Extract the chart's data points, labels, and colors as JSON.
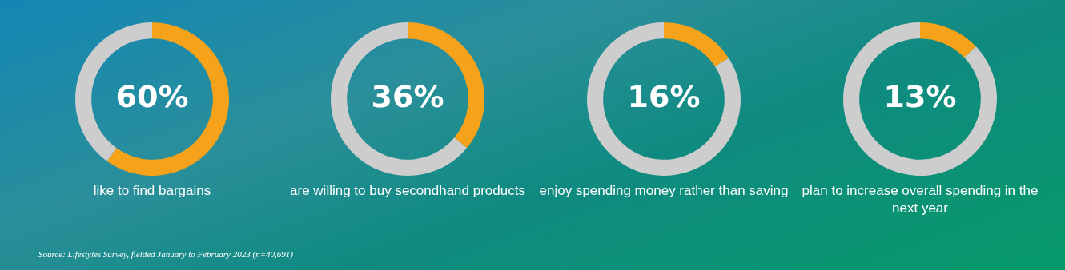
{
  "chart_data": [
    {
      "type": "donut",
      "title": "like to find bargains",
      "categories": [
        null,
        null
      ],
      "values": [
        60,
        40
      ],
      "colors": [
        "#f7a21b",
        "#cdcdcd"
      ],
      "value_labels": [
        "60%",
        null
      ],
      "annotations": [
        "Source: Lifestyles Survey, fielded January to February 2023 (n=40,691)"
      ]
    },
    {
      "type": "donut",
      "title": "are willing to buy secondhand products",
      "categories": [
        null,
        null
      ],
      "values": [
        36,
        64
      ],
      "colors": [
        "#f7a21b",
        "#cdcdcd"
      ],
      "value_labels": [
        "36%",
        null
      ]
    },
    {
      "type": "donut",
      "title": "enjoy spending money rather than saving",
      "categories": [
        null,
        null
      ],
      "values": [
        16,
        84
      ],
      "colors": [
        "#f7a21b",
        "#cdcdcd"
      ],
      "value_labels": [
        "16%",
        null
      ]
    },
    {
      "type": "donut",
      "title": "plan to increase overall spending in the next year",
      "categories": [
        null,
        null
      ],
      "values": [
        13,
        87
      ],
      "colors": [
        "#f7a21b",
        "#cdcdcd"
      ],
      "value_labels": [
        "13%",
        null
      ]
    }
  ]
}
